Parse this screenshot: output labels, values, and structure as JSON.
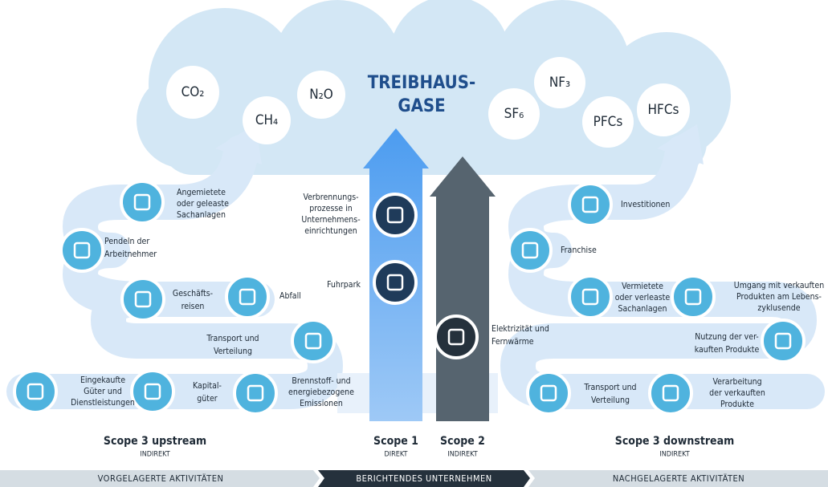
{
  "title": [
    "TREIBHAUS-",
    "GASE"
  ],
  "gases": [
    "CO₂",
    "CH₄",
    "N₂O",
    "SF₆",
    "NF₃",
    "PFCs",
    "HFCs"
  ],
  "nodes": [
    {
      "lines": [
        "Angemietete",
        "oder geleaste",
        "Sachanlagen"
      ]
    },
    {
      "lines": [
        "Pendeln der",
        "Arbeitnehmer"
      ]
    },
    {
      "lines": [
        "Geschäfts-",
        "reisen"
      ]
    },
    {
      "lines": [
        "Abfall"
      ]
    },
    {
      "lines": [
        "Transport und",
        "Verteilung"
      ]
    },
    {
      "lines": [
        "Brennstoff- und",
        "energiebezogene",
        "Emissionen"
      ]
    },
    {
      "lines": [
        "Kapital-",
        "güter"
      ]
    },
    {
      "lines": [
        "Eingekaufte",
        "Güter und",
        "Dienstleistungen"
      ]
    },
    {
      "lines": [
        "Verbrennungs-",
        "prozesse in",
        "Unternehmens-",
        "einrichtungen"
      ]
    },
    {
      "lines": [
        "Fuhrpark"
      ]
    },
    {
      "lines": [
        "Elektrizität und",
        "Fernwärme"
      ]
    },
    {
      "lines": [
        "Investitionen"
      ]
    },
    {
      "lines": [
        "Franchise"
      ]
    },
    {
      "lines": [
        "Vermietete",
        "oder verleaste",
        "Sachanlagen"
      ]
    },
    {
      "lines": [
        "Umgang mit verkauften",
        "Produkten am Lebens-",
        "zyklusende"
      ]
    },
    {
      "lines": [
        "Nutzung der ver-",
        "kauften Produkte"
      ]
    },
    {
      "lines": [
        "Verarbeitung",
        "der verkauften",
        "Produkte"
      ]
    },
    {
      "lines": [
        "Transport und",
        "Verteilung"
      ]
    }
  ],
  "scopes": [
    {
      "name": "Scope 3 upstream",
      "kind": "INDIREKT"
    },
    {
      "name": "Scope 1",
      "kind": "DIREKT"
    },
    {
      "name": "Scope 2",
      "kind": "INDIREKT"
    },
    {
      "name": "Scope 3 downstream",
      "kind": "INDIREKT"
    }
  ],
  "banner": [
    "VORGELAGERTE AKTIVITÄTEN",
    "BERICHTENDES UNTERNEHMEN",
    "NACHGELAGERTE AKTIVITÄTEN"
  ]
}
